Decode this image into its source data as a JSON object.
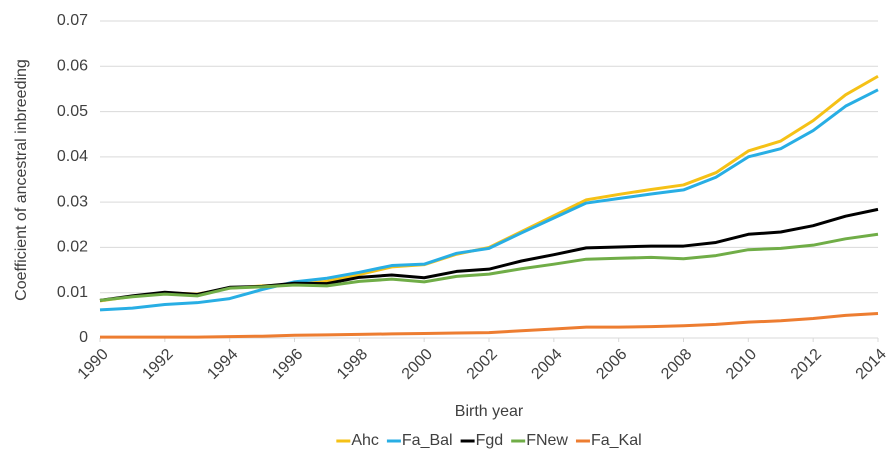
{
  "chart_data": {
    "type": "line",
    "x_label": "Birth year",
    "y_label": "Coefficient of ancestral inbreeding",
    "x": [
      1990,
      1991,
      1992,
      1993,
      1994,
      1995,
      1996,
      1997,
      1998,
      1999,
      2000,
      2001,
      2002,
      2003,
      2004,
      2005,
      2006,
      2007,
      2008,
      2009,
      2010,
      2011,
      2012,
      2013,
      2014
    ],
    "xlim": [
      1990,
      2014
    ],
    "xticks": [
      1990,
      1992,
      1994,
      1996,
      1998,
      2000,
      2002,
      2004,
      2006,
      2008,
      2010,
      2012,
      2014
    ],
    "ylim": [
      0,
      0.07
    ],
    "yticks": [
      0,
      0.01,
      0.02,
      0.03,
      0.04,
      0.05,
      0.06,
      0.07
    ],
    "grid": true,
    "legend": "bottom",
    "series": [
      {
        "name": "Ahc",
        "color": "#f5c116",
        "values": [
          0.0082,
          0.0092,
          0.01,
          0.0097,
          0.011,
          0.0115,
          0.0118,
          0.0125,
          0.014,
          0.0157,
          0.0162,
          0.0185,
          0.02,
          0.0235,
          0.027,
          0.0305,
          0.0317,
          0.0328,
          0.0338,
          0.0365,
          0.0413,
          0.0435,
          0.048,
          0.0537,
          0.0578
        ]
      },
      {
        "name": "Fa_Bal",
        "color": "#28aee4",
        "values": [
          0.0062,
          0.0066,
          0.0074,
          0.0078,
          0.0087,
          0.0107,
          0.0124,
          0.0132,
          0.0145,
          0.016,
          0.0163,
          0.0187,
          0.0198,
          0.0232,
          0.0265,
          0.0298,
          0.0308,
          0.0318,
          0.0327,
          0.0355,
          0.04,
          0.0418,
          0.0458,
          0.0512,
          0.0548
        ]
      },
      {
        "name": "Fgd",
        "color": "#000000",
        "values": [
          0.0083,
          0.0093,
          0.0101,
          0.0096,
          0.0112,
          0.0114,
          0.0121,
          0.012,
          0.0134,
          0.0139,
          0.0133,
          0.0147,
          0.0152,
          0.017,
          0.0184,
          0.0199,
          0.0201,
          0.0203,
          0.0203,
          0.0211,
          0.0229,
          0.0234,
          0.0248,
          0.0269,
          0.0284
        ]
      },
      {
        "name": "FNew",
        "color": "#70ad47",
        "values": [
          0.0083,
          0.0091,
          0.0097,
          0.0093,
          0.011,
          0.0113,
          0.0117,
          0.0115,
          0.0125,
          0.013,
          0.0124,
          0.0136,
          0.0141,
          0.0153,
          0.0163,
          0.0174,
          0.0176,
          0.0178,
          0.0175,
          0.0182,
          0.0195,
          0.0198,
          0.0205,
          0.0219,
          0.0229
        ]
      },
      {
        "name": "Fa_Kal",
        "color": "#ed7d31",
        "values": [
          0.0002,
          0.0002,
          0.0002,
          0.0002,
          0.0003,
          0.0004,
          0.0006,
          0.0007,
          0.0008,
          0.0009,
          0.001,
          0.0011,
          0.0012,
          0.0016,
          0.002,
          0.0024,
          0.0024,
          0.0025,
          0.0027,
          0.003,
          0.0035,
          0.0038,
          0.0043,
          0.005,
          0.0054
        ]
      }
    ]
  }
}
